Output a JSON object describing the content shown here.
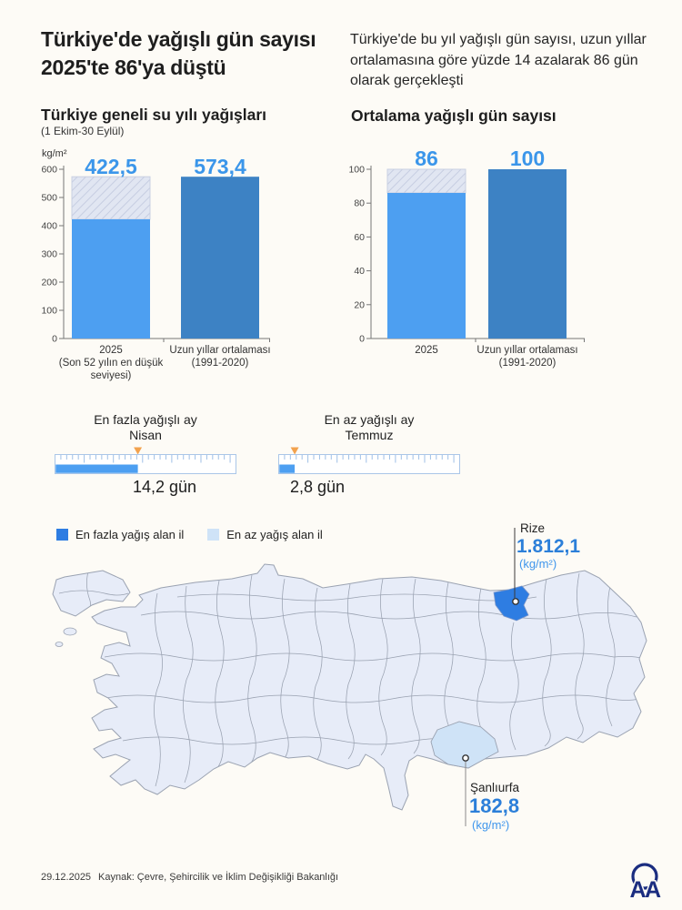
{
  "header": {
    "title_line1": "Türkiye'de yağışlı gün sayısı",
    "title_line2": "2025'te 86'ya düştü",
    "intro": "Türkiye'de bu yıl yağışlı gün sayısı, uzun yıllar ortalamasına göre yüzde 14 azalarak 86 gün olarak gerçekleşti"
  },
  "left_chart": {
    "title": "Türkiye geneli su yılı yağışları",
    "subtitle": "(1 Ekim-30 Eylül)",
    "unit_label": "kg/m²"
  },
  "right_chart": {
    "title": "Ortalama yağışlı gün sayısı"
  },
  "gauges": [
    {
      "label": "En fazla yağışlı ay",
      "month": "Nisan",
      "value_label": "14,2 gün"
    },
    {
      "label": "En az yağışlı ay",
      "month": "Temmuz",
      "value_label": "2,8 gün"
    }
  ],
  "map": {
    "legend": [
      {
        "label": "En fazla yağış alan il"
      },
      {
        "label": "En az yağış alan il"
      }
    ],
    "max_province": {
      "name": "Rize",
      "value_label": "1.812,1",
      "unit": "(kg/m²)"
    },
    "min_province": {
      "name": "Şanlıurfa",
      "value_label": "182,8",
      "unit": "(kg/m²)"
    }
  },
  "footer": {
    "date": "29.12.2025",
    "source": "Kaynak: Çevre, Şehircilik ve İklim Değişikliği Bakanlığı",
    "agency_logo": "AA"
  },
  "colors": {
    "background": "#fdfbf6",
    "light_blue_bar": "#4d9ff1",
    "dark_blue_bar": "#3d82c4",
    "value_label_blue": "#3b96ea",
    "hatch_bg": "#e1e6f2",
    "hatch_line": "#c6cde1",
    "map_fill": "#e7ecf8",
    "map_border": "#9aa2b1",
    "highlight_max": "#2e7de2",
    "highlight_min": "#cfe3f7",
    "marker_orange": "#f2a24e",
    "logo_navy": "#1b2d80"
  },
  "chart_data": [
    {
      "type": "bar",
      "title": "Türkiye geneli su yılı yağışları (1 Ekim-30 Eylül)",
      "ylabel": "kg/m²",
      "ylim": [
        0,
        600
      ],
      "yticks": [
        0,
        100,
        200,
        300,
        400,
        500,
        600
      ],
      "categories": [
        "2025 (Son 52 yılın en düşük seviyesi)",
        "Uzun yıllar ortalaması (1991-2020)"
      ],
      "category_lines": [
        [
          "2025",
          "(Son 52 yılın en düşük",
          "seviyesi)"
        ],
        [
          "Uzun yıllar ortalaması",
          "(1991-2020)"
        ]
      ],
      "values": [
        422.5,
        573.4
      ],
      "value_labels": [
        "422,5",
        "573,4"
      ],
      "legend_position": "none",
      "grid": false,
      "annotation": "2025 barının üst kısmındaki taralı alan uzun yıllar ortalamasına (573,4) kadar olan farkı gösterir"
    },
    {
      "type": "bar",
      "title": "Ortalama yağışlı gün sayısı",
      "ylim": [
        0,
        100
      ],
      "yticks": [
        0,
        20,
        40,
        60,
        80,
        100
      ],
      "categories": [
        "2025",
        "Uzun yıllar ortalaması (1991-2020)"
      ],
      "category_lines": [
        [
          "2025"
        ],
        [
          "Uzun yıllar ortalaması",
          "(1991-2020)"
        ]
      ],
      "values": [
        86,
        100
      ],
      "value_labels": [
        "86",
        "100"
      ],
      "grid": false,
      "annotation": "2025 barının üst kısmındaki taralı alan 100 güne kadar olan farkı gösterir"
    },
    {
      "type": "gauge",
      "items": [
        {
          "label": "En fazla yağışlı ay",
          "month": "Nisan",
          "days": 14.2,
          "value_label": "14,2 gün",
          "scale_days": 31
        },
        {
          "label": "En az yağışlı ay",
          "month": "Temmuz",
          "days": 2.8,
          "value_label": "2,8 gün",
          "scale_days": 31
        }
      ]
    },
    {
      "type": "map",
      "legend": [
        "En fazla yağış alan il",
        "En az yağış alan il"
      ],
      "provinces": [
        {
          "name": "Rize",
          "value": 1812.1,
          "value_label": "1.812,1",
          "unit": "kg/m²",
          "role": "en fazla yağış alan il"
        },
        {
          "name": "Şanlıurfa",
          "value": 182.8,
          "value_label": "182,8",
          "unit": "kg/m²",
          "role": "en az yağış alan il"
        }
      ]
    }
  ]
}
